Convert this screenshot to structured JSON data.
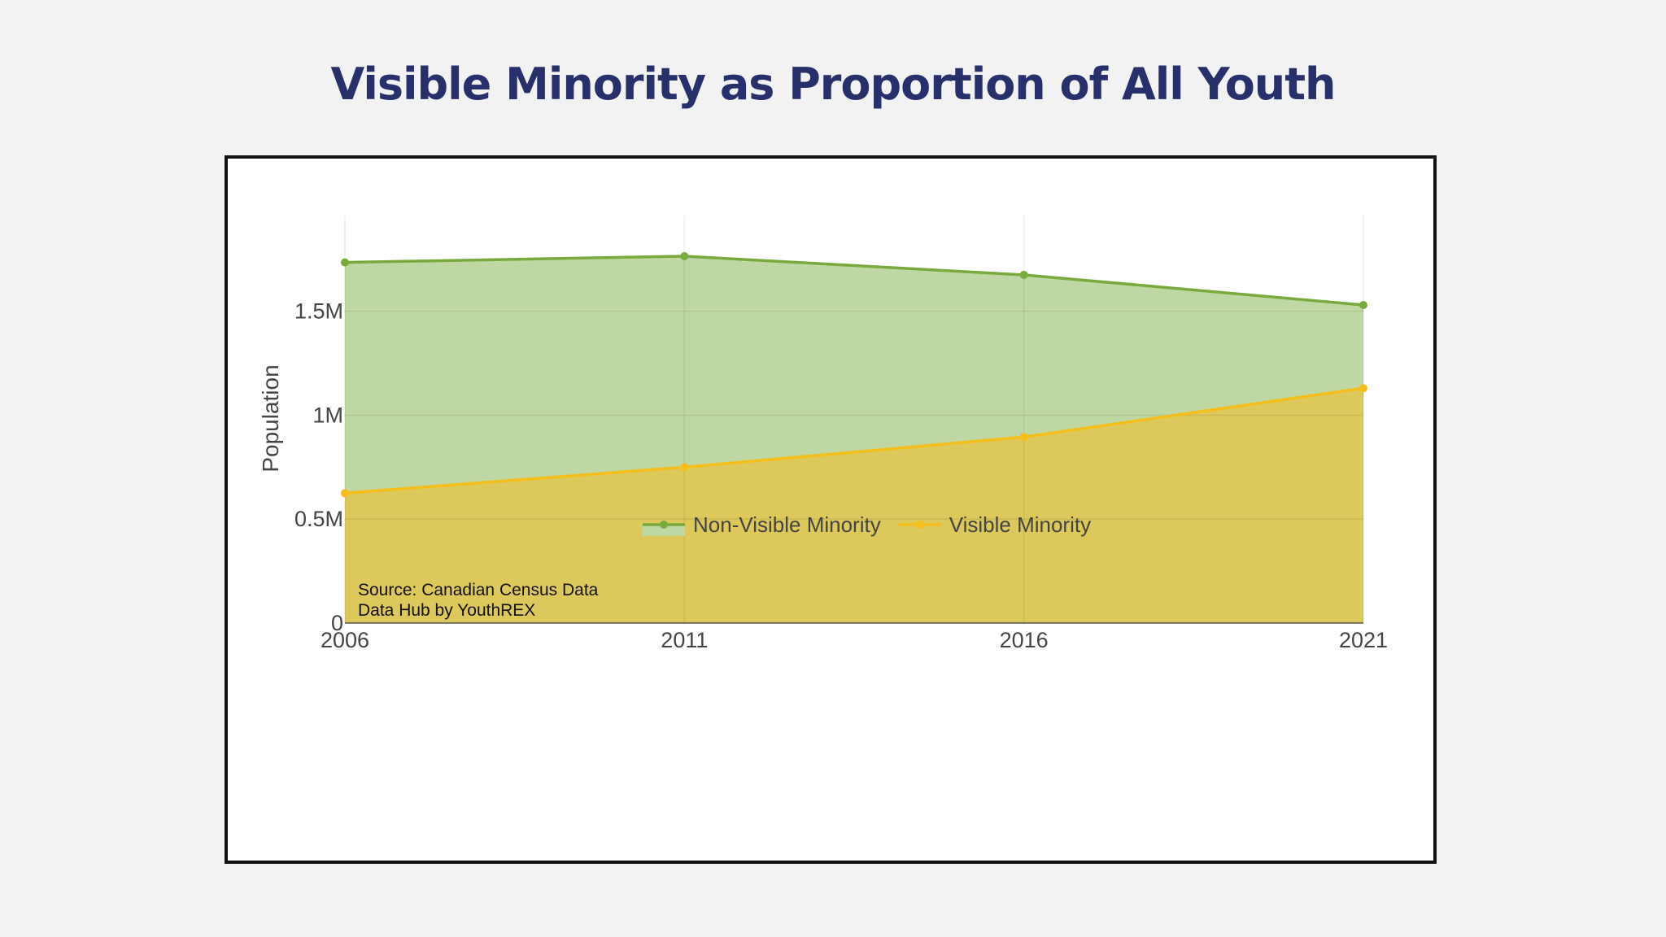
{
  "title": "Visible Minority as Proportion of All Youth",
  "source_lines": [
    "Source: Canadian Census Data",
    "Data Hub by YouthREX"
  ],
  "chart_data": {
    "type": "area",
    "x": [
      2006,
      2011,
      2016,
      2021
    ],
    "xticks": [
      "2006",
      "2011",
      "2016",
      "2021"
    ],
    "ylabel": "Population",
    "yticks": [
      {
        "value": 0,
        "label": "0"
      },
      {
        "value": 500000,
        "label": "0.5M"
      },
      {
        "value": 1000000,
        "label": "1M"
      },
      {
        "value": 1500000,
        "label": "1.5M"
      }
    ],
    "ylim": [
      0,
      1890000
    ],
    "stacked": true,
    "series": [
      {
        "name": "Visible Minority",
        "values": [
          625000,
          750000,
          895000,
          1130000
        ],
        "line_color": "#f6be1a",
        "fill_color": "#dcc85b"
      },
      {
        "name": "Non-Visible Minority",
        "values": [
          1110000,
          1015000,
          780000,
          400000
        ],
        "line_color": "#79aa3e",
        "fill_color": "#bfd7a2"
      }
    ],
    "legend_order": [
      "Non-Visible Minority",
      "Visible Minority"
    ],
    "legend_position": "bottom",
    "grid": true
  }
}
